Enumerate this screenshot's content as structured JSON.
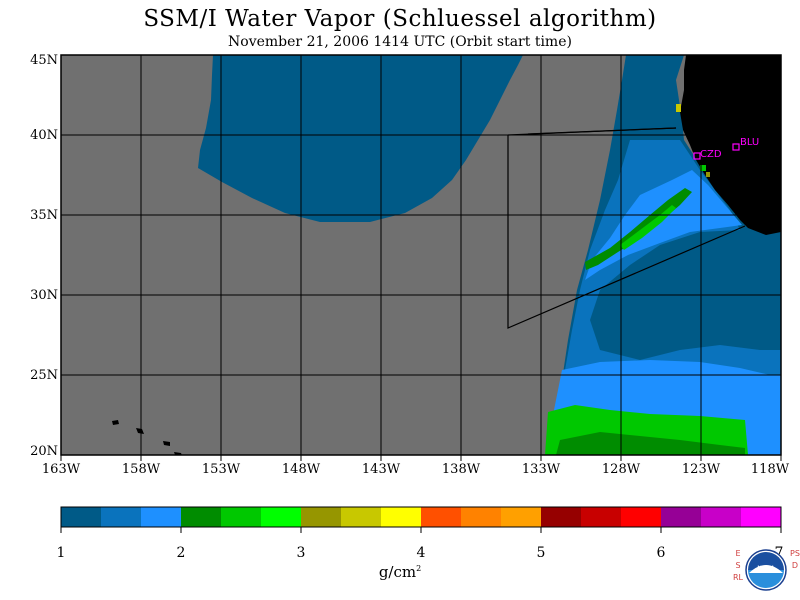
{
  "title": "SSM/I Water Vapor (Schluessel algorithm)",
  "subtitle": "November 21, 2006  1414 UTC  (Orbit start time)",
  "map": {
    "lat_range": [
      20,
      45
    ],
    "lon_range": [
      -163,
      -118
    ],
    "lat_labels": [
      "45N",
      "40N",
      "35N",
      "30N",
      "25N",
      "20N"
    ],
    "lon_labels": [
      "163W",
      "158W",
      "153W",
      "148W",
      "143W",
      "138W",
      "133W",
      "128W",
      "123W",
      "118W"
    ],
    "stations": [
      {
        "id": "CZD",
        "lat": 38.6,
        "lon": -123.2
      },
      {
        "id": "BLU",
        "lat": 39.3,
        "lon": -120.7
      }
    ],
    "colors": {
      "no_data": "#707070",
      "land": "#000000",
      "station": "#ff00ff"
    }
  },
  "colorbar": {
    "tick_labels": [
      "1",
      "2",
      "3",
      "4",
      "5",
      "6",
      "7"
    ],
    "colors": [
      "#005a87",
      "#0a73bd",
      "#1e90ff",
      "#008c00",
      "#00c800",
      "#00ff00",
      "#969600",
      "#c8c800",
      "#ffff00",
      "#ff5000",
      "#ff8200",
      "#ffa000",
      "#960000",
      "#c80000",
      "#ff0000",
      "#960096",
      "#c800c8",
      "#ff00ff"
    ],
    "units": "g/cm",
    "units_exp": "2"
  },
  "branding": {
    "left_text": "ESRL",
    "right_text": "PSD",
    "logo_text": "NOAA"
  }
}
